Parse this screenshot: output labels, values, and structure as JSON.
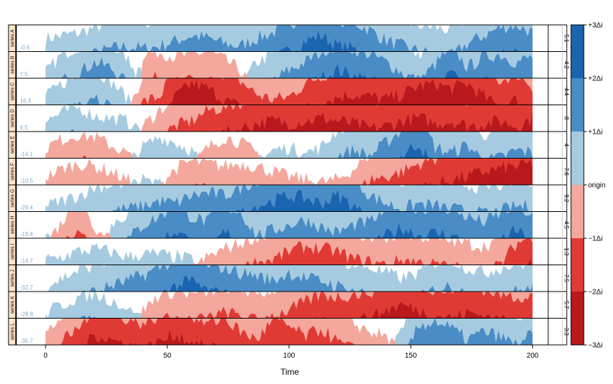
{
  "chart_data": {
    "type": "area",
    "subtype": "horizon",
    "title": "",
    "xlabel": "Time",
    "ylabel": "",
    "xlim": [
      0,
      200
    ],
    "x_ticks": [
      "0",
      "50",
      "100",
      "150",
      "200"
    ],
    "color_key": {
      "labels": [
        "+3Δi",
        "+2Δi",
        "+1Δi",
        "origin",
        "−1Δi",
        "−2Δi",
        "−3Δi"
      ],
      "colors_positive": [
        "#a6cbe0",
        "#4a8cc6",
        "#1a64b0"
      ],
      "colors_negative": [
        "#f4a79c",
        "#e03a35",
        "#b7191d"
      ]
    },
    "series": [
      {
        "name": "series A",
        "origin": "-0.6",
        "delta": "5.1",
        "levels": [
          0.5,
          0.6,
          0.7,
          0.9,
          1.1,
          1.2,
          1.1,
          1.2,
          1.4,
          1.6,
          1.5,
          1.3,
          1.2,
          1.5,
          1.7,
          2.0,
          2.4,
          2.6,
          2.2,
          2.1,
          1.8,
          1.4,
          1.2,
          1.0,
          0.9,
          0.8,
          1.3,
          1.6,
          1.9,
          2.0,
          1.7
        ]
      },
      {
        "name": "series B",
        "origin": "7.5",
        "delta": "4.2",
        "levels": [
          0.2,
          0.9,
          1.2,
          1.6,
          1.4,
          0.8,
          -0.9,
          -1.0,
          -0.8,
          -0.9,
          -1.0,
          -0.7,
          -0.3,
          0.6,
          0.9,
          1.3,
          1.6,
          2.0,
          2.3,
          2.1,
          1.9,
          1.6,
          1.2,
          0.9,
          1.5,
          2.2,
          1.4,
          1.8,
          1.9,
          1.6,
          1.8
        ]
      },
      {
        "name": "series C",
        "origin": "16.3",
        "delta": "4.4",
        "levels": [
          0.3,
          0.8,
          1.1,
          1.4,
          0.9,
          0.3,
          -1.1,
          -1.3,
          -2.3,
          -2.8,
          -2.6,
          -2.2,
          -1.9,
          -1.4,
          -1.2,
          -1.3,
          -1.8,
          -2.1,
          -2.3,
          -2.4,
          -2.3,
          -2.2,
          -2.4,
          -2.7,
          -2.8,
          -2.6,
          -2.8,
          -2.3,
          -1.9,
          -2.2,
          -1.7
        ]
      },
      {
        "name": "series D",
        "origin": "6.5",
        "delta": "8",
        "levels": [
          0.4,
          0.7,
          0.9,
          0.6,
          0.5,
          0.4,
          -0.2,
          -0.8,
          -1.2,
          -1.4,
          -1.8,
          -1.9,
          -2.1,
          -2.3,
          -2.4,
          -2.3,
          -2.4,
          -2.5,
          -2.4,
          -2.3,
          -2.1,
          -2.2,
          -2.4,
          -2.5,
          -2.3,
          -2.4,
          -2.2,
          -2.3,
          -2.4,
          -2.2,
          -2.5
        ]
      },
      {
        "name": "series E",
        "origin": "-14.1",
        "delta": "4",
        "levels": [
          -0.4,
          -0.7,
          -0.9,
          -0.8,
          -0.5,
          -0.2,
          0.4,
          0.8,
          0.6,
          0.3,
          -0.4,
          -0.8,
          -0.6,
          -0.2,
          0.3,
          0.4,
          0.2,
          0.4,
          1.1,
          1.3,
          1.1,
          1.6,
          2.1,
          2.6,
          1.4,
          1.2,
          1.5,
          0.9,
          1.0,
          1.3,
          1.2
        ]
      },
      {
        "name": "series F",
        "origin": "-10.5",
        "delta": "7.6",
        "levels": [
          -0.3,
          -0.6,
          -0.8,
          -0.7,
          -0.5,
          -0.2,
          0.2,
          0.0,
          -0.6,
          -0.9,
          -0.8,
          -0.7,
          -0.8,
          -0.7,
          -0.5,
          -0.3,
          -0.2,
          -0.1,
          -0.2,
          -0.6,
          -1.2,
          -1.3,
          -1.5,
          -1.8,
          -2.0,
          -2.2,
          -2.3,
          -2.5,
          -2.6,
          -2.7,
          -2.8
        ]
      },
      {
        "name": "series G",
        "origin": "-29.4",
        "delta": "9.2",
        "levels": [
          0.2,
          0.4,
          0.6,
          0.9,
          1.0,
          1.1,
          1.2,
          1.4,
          1.3,
          1.6,
          1.7,
          1.6,
          1.9,
          2.2,
          2.4,
          2.6,
          2.5,
          2.3,
          2.6,
          2.2,
          1.6,
          1.3,
          1.1,
          1.3,
          1.2,
          1.1,
          1.0,
          0.9,
          1.0,
          1.2,
          1.2
        ]
      },
      {
        "name": "series H",
        "origin": "-19.4",
        "delta": "4.5",
        "levels": [
          0.2,
          -0.6,
          -1.5,
          -0.4,
          0.5,
          0.9,
          1.5,
          1.8,
          2.3,
          1.8,
          1.6,
          2.2,
          2.0,
          1.1,
          1.3,
          1.5,
          1.7,
          1.4,
          1.2,
          1.5,
          1.6,
          2.1,
          2.4,
          2.1,
          2.2,
          2.1,
          1.8,
          1.6,
          1.9,
          2.3,
          1.8
        ]
      },
      {
        "name": "series I",
        "origin": "-14.7",
        "delta": "1.3",
        "levels": [
          0.2,
          0.3,
          0.5,
          0.6,
          0.5,
          0.3,
          0.4,
          0.4,
          0.3,
          0.2,
          -0.3,
          -0.6,
          -0.8,
          -1.1,
          -1.2,
          -1.5,
          -1.7,
          -1.6,
          -1.5,
          -1.2,
          -1.1,
          -1.0,
          -1.2,
          -1.1,
          -1.0,
          -0.9,
          -0.8,
          -0.7,
          -1.0,
          -1.8,
          -2.1
        ]
      },
      {
        "name": "series J",
        "origin": "-32.7",
        "delta": "7.5",
        "levels": [
          0.2,
          0.5,
          0.8,
          1.0,
          1.2,
          1.4,
          1.6,
          1.9,
          2.2,
          2.4,
          2.0,
          1.9,
          1.7,
          1.6,
          1.4,
          1.7,
          1.5,
          1.4,
          1.2,
          1.0,
          0.9,
          0.7,
          0.5,
          0.7,
          1.1,
          1.2,
          0.9,
          0.7,
          0.9,
          1.0,
          1.1
        ]
      },
      {
        "name": "series K",
        "origin": "-28.8",
        "delta": "5.7",
        "levels": [
          0.2,
          0.5,
          0.8,
          0.9,
          0.7,
          0.4,
          -0.3,
          -0.9,
          -1.0,
          -0.9,
          -1.0,
          -1.2,
          -1.1,
          -0.9,
          -1.1,
          -1.3,
          -1.6,
          -1.9,
          -1.8,
          -1.9,
          -2.0,
          -2.3,
          -2.5,
          -2.3,
          -2.1,
          -2.0,
          -2.2,
          -2.1,
          -1.9,
          -1.8,
          -1.9
        ]
      },
      {
        "name": "series L",
        "origin": "-35.7",
        "delta": "3.3",
        "levels": [
          -0.4,
          -1.1,
          -1.6,
          -2.4,
          -2.2,
          -2.0,
          -1.8,
          -2.1,
          -2.4,
          -2.1,
          -1.8,
          -2.0,
          -1.5,
          -1.2,
          -1.9,
          -1.7,
          -1.3,
          -1.6,
          -1.1,
          -0.8,
          -0.5,
          -0.3,
          0.5,
          1.7,
          1.9,
          1.6,
          1.2,
          1.5,
          1.3,
          1.0,
          1.4
        ]
      }
    ]
  }
}
